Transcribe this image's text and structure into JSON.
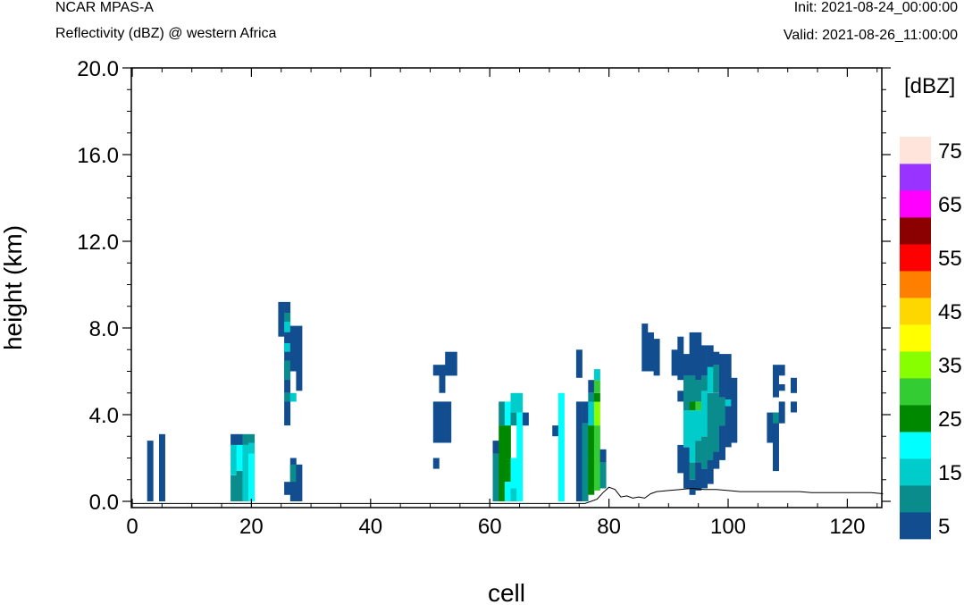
{
  "header": {
    "model": "NCAR MPAS-A",
    "field": "Reflectivity (dBZ) @ western Africa",
    "init": "Init: 2021-08-24_00:00:00",
    "valid": "Valid: 2021-08-26_11:00:00"
  },
  "chart_data": {
    "type": "heatmap",
    "title": "Reflectivity (dBZ) @ western Africa",
    "xlabel": "cell",
    "ylabel": "height (km)",
    "xlim": [
      0,
      126
    ],
    "ylim": [
      -0.3,
      20.5
    ],
    "xticks": [
      0,
      20,
      40,
      60,
      80,
      100,
      120
    ],
    "yticks": [
      0,
      4,
      8,
      12,
      16,
      20
    ],
    "ytick_labels": [
      "0.0",
      "4.0",
      "8.0",
      "12.0",
      "16.0",
      "20.0"
    ],
    "colorbar": {
      "unit_label": "[dBZ]",
      "levels": [
        5,
        10,
        15,
        20,
        25,
        30,
        35,
        40,
        45,
        50,
        55,
        60,
        65,
        70,
        75
      ],
      "labels": [
        "5",
        "15",
        "25",
        "35",
        "45",
        "55",
        "65",
        "75"
      ],
      "colors": [
        "#124e8f",
        "#0b8c8c",
        "#00cccc",
        "#00ffff",
        "#008800",
        "#33cc33",
        "#88ff00",
        "#ffff00",
        "#ffd700",
        "#ff8000",
        "#ff0000",
        "#8b0000",
        "#ff00ff",
        "#9933ff",
        "#ffe4dc"
      ]
    },
    "cell_width": 1,
    "dz": 0.5,
    "columns": [
      {
        "x": 3,
        "segs": [
          [
            0,
            2.8,
            0
          ]
        ]
      },
      {
        "x": 5,
        "segs": [
          [
            0,
            3.1,
            0
          ]
        ]
      },
      {
        "x": 17,
        "segs": [
          [
            0,
            1.2,
            1
          ],
          [
            1.2,
            2.6,
            2
          ],
          [
            2.6,
            3.1,
            0
          ]
        ]
      },
      {
        "x": 18,
        "segs": [
          [
            0,
            1.4,
            1
          ],
          [
            1.4,
            2.6,
            3
          ],
          [
            2.6,
            3.1,
            0
          ]
        ]
      },
      {
        "x": 19,
        "segs": [
          [
            0,
            2.6,
            2
          ],
          [
            2.6,
            3.1,
            1
          ]
        ]
      },
      {
        "x": 20,
        "segs": [
          [
            0,
            2.2,
            3
          ],
          [
            2.2,
            2.7,
            2
          ],
          [
            2.7,
            3.1,
            1
          ]
        ]
      },
      {
        "x": 25,
        "segs": [
          [
            7.6,
            9.2,
            0
          ]
        ]
      },
      {
        "x": 26,
        "segs": [
          [
            0.3,
            0.9,
            0
          ],
          [
            3.5,
            4.6,
            0
          ],
          [
            5.0,
            7.3,
            0
          ],
          [
            7.3,
            8.7,
            0
          ],
          [
            8.7,
            9.2,
            0
          ]
        ]
      },
      {
        "x": 26,
        "segs": [
          [
            4.6,
            5.0,
            1
          ],
          [
            5.6,
            6.5,
            1
          ],
          [
            6.9,
            7.3,
            2
          ],
          [
            7.8,
            8.3,
            2
          ],
          [
            8.3,
            8.7,
            1
          ]
        ]
      },
      {
        "x": 27,
        "segs": [
          [
            0,
            2.0,
            0
          ],
          [
            0.9,
            1.7,
            1
          ],
          [
            4.6,
            5.0,
            2
          ],
          [
            6.0,
            8.1,
            0
          ]
        ]
      },
      {
        "x": 28,
        "segs": [
          [
            0,
            1.7,
            0
          ],
          [
            5.1,
            8.1,
            0
          ]
        ]
      },
      {
        "x": 51,
        "segs": [
          [
            1.5,
            2.0,
            0
          ],
          [
            2.7,
            4.6,
            0
          ],
          [
            5.8,
            6.3,
            0
          ]
        ]
      },
      {
        "x": 52,
        "segs": [
          [
            2.7,
            4.6,
            0
          ],
          [
            5.0,
            6.3,
            0
          ]
        ]
      },
      {
        "x": 53,
        "segs": [
          [
            2.7,
            4.6,
            0
          ],
          [
            5.8,
            6.9,
            0
          ]
        ]
      },
      {
        "x": 54,
        "segs": [
          [
            5.8,
            6.9,
            0
          ]
        ]
      },
      {
        "x": 61,
        "segs": [
          [
            0,
            2.2,
            1
          ],
          [
            2.2,
            2.8,
            0
          ]
        ]
      },
      {
        "x": 62,
        "segs": [
          [
            0,
            3.5,
            4
          ],
          [
            3.5,
            4.6,
            1
          ]
        ]
      },
      {
        "x": 63,
        "segs": [
          [
            0,
            0.9,
            3
          ],
          [
            0.9,
            3.5,
            4
          ],
          [
            3.5,
            4.6,
            3
          ]
        ]
      },
      {
        "x": 64,
        "segs": [
          [
            0,
            0.6,
            2
          ],
          [
            0.6,
            2.0,
            3
          ],
          [
            3.5,
            4.1,
            1
          ],
          [
            4.1,
            5.0,
            2
          ]
        ]
      },
      {
        "x": 65,
        "segs": [
          [
            0,
            4.1,
            3
          ],
          [
            4.1,
            5.0,
            2
          ]
        ]
      },
      {
        "x": 66,
        "segs": [
          [
            3.5,
            4.1,
            0
          ]
        ]
      },
      {
        "x": 71,
        "segs": [
          [
            3.0,
            3.5,
            0
          ]
        ]
      },
      {
        "x": 72,
        "segs": [
          [
            0,
            5.0,
            3
          ]
        ]
      },
      {
        "x": 75,
        "segs": [
          [
            0,
            4.6,
            0
          ],
          [
            5.7,
            7.0,
            0
          ]
        ]
      },
      {
        "x": 76,
        "segs": [
          [
            0,
            3.6,
            1
          ],
          [
            3.6,
            4.6,
            0
          ]
        ]
      },
      {
        "x": 77,
        "segs": [
          [
            0.3,
            3.5,
            4
          ],
          [
            3.5,
            4.6,
            2
          ],
          [
            4.6,
            5.0,
            1
          ],
          [
            5.0,
            5.6,
            0
          ]
        ]
      },
      {
        "x": 78,
        "segs": [
          [
            0.5,
            3.5,
            5
          ],
          [
            3.5,
            4.6,
            6
          ],
          [
            4.6,
            5.0,
            4
          ],
          [
            5.0,
            5.6,
            5
          ],
          [
            5.6,
            6.1,
            2
          ]
        ]
      },
      {
        "x": 79,
        "segs": [
          [
            0.6,
            1.8,
            1
          ],
          [
            1.8,
            2.4,
            0
          ]
        ]
      },
      {
        "x": 86,
        "segs": [
          [
            6.0,
            8.2,
            0
          ]
        ]
      },
      {
        "x": 87,
        "segs": [
          [
            6.0,
            7.8,
            0
          ]
        ]
      },
      {
        "x": 88,
        "segs": [
          [
            5.8,
            7.5,
            0
          ]
        ]
      },
      {
        "x": 91,
        "segs": [
          [
            5.8,
            7.0,
            0
          ]
        ]
      },
      {
        "x": 92,
        "segs": [
          [
            1.3,
            2.6,
            0
          ],
          [
            4.6,
            5.1,
            0
          ],
          [
            5.6,
            7.6,
            0
          ]
        ]
      },
      {
        "x": 93,
        "segs": [
          [
            0.6,
            2.5,
            0
          ],
          [
            2.5,
            4.2,
            2
          ],
          [
            4.2,
            5.8,
            1
          ],
          [
            5.8,
            6.8,
            0
          ]
        ]
      },
      {
        "x": 94,
        "segs": [
          [
            0.3,
            1.0,
            0
          ],
          [
            1.0,
            1.8,
            1
          ],
          [
            1.8,
            4.2,
            2
          ],
          [
            4.2,
            4.6,
            4
          ],
          [
            4.6,
            5.8,
            1
          ],
          [
            5.8,
            7.8,
            0
          ]
        ]
      },
      {
        "x": 95,
        "segs": [
          [
            0.5,
            1.8,
            0
          ],
          [
            1.8,
            2.8,
            1
          ],
          [
            2.8,
            4.2,
            2
          ],
          [
            4.2,
            4.6,
            5
          ],
          [
            4.6,
            5.6,
            1
          ],
          [
            5.6,
            7.8,
            0
          ]
        ]
      },
      {
        "x": 96,
        "segs": [
          [
            0.6,
            1.5,
            0
          ],
          [
            1.5,
            3.0,
            1
          ],
          [
            3.0,
            5.1,
            2
          ],
          [
            5.1,
            5.8,
            1
          ],
          [
            5.8,
            7.2,
            0
          ]
        ]
      },
      {
        "x": 97,
        "segs": [
          [
            0.8,
            1.9,
            0
          ],
          [
            1.9,
            5.0,
            1
          ],
          [
            5.0,
            6.2,
            2
          ],
          [
            6.2,
            7.2,
            0
          ]
        ]
      },
      {
        "x": 98,
        "segs": [
          [
            1.5,
            2.3,
            0
          ],
          [
            2.3,
            5.0,
            1
          ],
          [
            5.0,
            6.3,
            1
          ],
          [
            6.3,
            6.9,
            0
          ]
        ]
      },
      {
        "x": 99,
        "segs": [
          [
            1.9,
            3.5,
            0
          ],
          [
            3.5,
            4.8,
            1
          ],
          [
            4.8,
            6.8,
            0
          ]
        ]
      },
      {
        "x": 100,
        "segs": [
          [
            2.5,
            4.4,
            0
          ],
          [
            4.4,
            4.7,
            2
          ],
          [
            4.7,
            6.8,
            0
          ]
        ]
      },
      {
        "x": 101,
        "segs": [
          [
            2.7,
            4.6,
            0
          ],
          [
            4.6,
            5.7,
            0
          ]
        ]
      },
      {
        "x": 107,
        "segs": [
          [
            2.7,
            4.1,
            0
          ]
        ]
      },
      {
        "x": 108,
        "segs": [
          [
            1.4,
            4.1,
            0
          ],
          [
            3.6,
            4.1,
            1
          ],
          [
            4.8,
            6.3,
            0
          ]
        ]
      },
      {
        "x": 109,
        "segs": [
          [
            3.6,
            4.6,
            0
          ],
          [
            5.1,
            5.4,
            0
          ],
          [
            5.8,
            6.3,
            0
          ]
        ]
      },
      {
        "x": 111,
        "segs": [
          [
            4.1,
            4.6,
            0
          ],
          [
            5.0,
            5.7,
            0
          ]
        ]
      }
    ],
    "terrain": {
      "x": [
        0,
        76,
        78,
        79,
        80,
        81,
        82,
        83,
        84,
        85,
        86,
        87,
        88,
        90,
        92,
        94,
        96,
        98,
        100,
        102,
        104,
        106,
        108,
        110,
        112,
        114,
        116,
        118,
        120,
        122,
        124,
        126
      ],
      "y": [
        -0.1,
        -0.1,
        0.1,
        0.4,
        0.65,
        0.55,
        0.2,
        0.25,
        0.15,
        0.2,
        0.15,
        0.35,
        0.45,
        0.5,
        0.55,
        0.6,
        0.55,
        0.55,
        0.5,
        0.45,
        0.45,
        0.45,
        0.45,
        0.45,
        0.45,
        0.4,
        0.4,
        0.4,
        0.4,
        0.4,
        0.4,
        0.35
      ]
    }
  }
}
